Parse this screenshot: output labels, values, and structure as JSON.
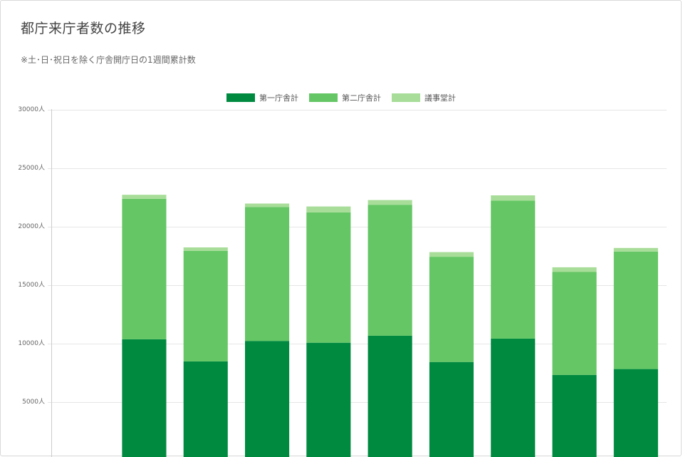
{
  "page": {
    "title": "都庁来庁者数の推移",
    "subtitle": "※土･日･祝日を除く庁舎開庁日の1週間累計数"
  },
  "chart_data": {
    "type": "bar",
    "stacked": true,
    "categories": [
      "",
      "",
      "",
      "",
      "",
      "",
      "",
      "",
      "",
      ""
    ],
    "series": [
      {
        "name": "第一庁舎計",
        "color": "#008a40",
        "values": [
          null,
          10350,
          8450,
          10200,
          10050,
          10650,
          8400,
          10400,
          7300,
          7800
        ]
      },
      {
        "name": "第二庁舎計",
        "color": "#64c664",
        "values": [
          null,
          12000,
          9450,
          11450,
          11150,
          11200,
          9000,
          11800,
          8800,
          10050
        ]
      },
      {
        "name": "議事堂計",
        "color": "#a7dd98",
        "values": [
          null,
          350,
          300,
          300,
          500,
          400,
          400,
          450,
          400,
          300
        ]
      }
    ],
    "y_ticks": [
      "30000人",
      "25000人",
      "20000人",
      "15000人",
      "10000人",
      "5000人"
    ],
    "ylim": [
      0,
      30000
    ],
    "legend_position": "top-center",
    "grid": true
  }
}
